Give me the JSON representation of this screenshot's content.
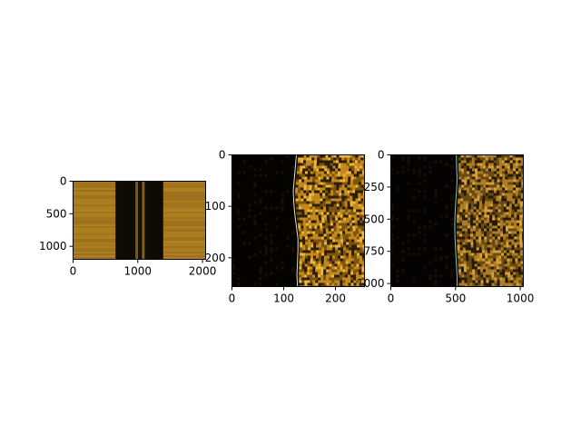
{
  "figure": {
    "background": "#ffffff"
  },
  "chart_data": [
    {
      "type": "heatmap",
      "title": "",
      "xlabel": "",
      "ylabel": "",
      "xlim": [
        0,
        2048
      ],
      "ylim": [
        1200,
        0
      ],
      "xticks": [
        0,
        1000,
        2000
      ],
      "yticks": [
        0,
        500,
        1000
      ],
      "image": {
        "description": "side-scan sonar mosaic, amber seafloor returns on both sides with a dark water-column band in the middle",
        "palette": [
          "#050300",
          "#3a2608",
          "#8a5e14",
          "#c8901e",
          "#e8b440"
        ],
        "bands": [
          {
            "from": 0,
            "to": 0.32,
            "color": "#a87a1e"
          },
          {
            "from": 0.32,
            "to": 0.47,
            "color": "#0e0b04"
          },
          {
            "from": 0.47,
            "to": 0.49,
            "color": "#7a5a1c"
          },
          {
            "from": 0.49,
            "to": 0.52,
            "color": "#141006"
          },
          {
            "from": 0.52,
            "to": 0.54,
            "color": "#806024"
          },
          {
            "from": 0.54,
            "to": 0.57,
            "color": "#120e05"
          },
          {
            "from": 0.57,
            "to": 0.68,
            "color": "#0e0b04"
          },
          {
            "from": 0.68,
            "to": 1.0,
            "color": "#a87a1e"
          }
        ]
      }
    },
    {
      "type": "heatmap",
      "title": "",
      "xlabel": "",
      "ylabel": "",
      "xlim": [
        0,
        256
      ],
      "ylim": [
        256,
        0
      ],
      "xticks": [
        0,
        100,
        200
      ],
      "yticks": [
        0,
        100,
        200
      ],
      "image": {
        "description": "close-up of sonar swath: dark water column on the left, a thin bright bottom line, speckled amber seafloor to the right",
        "palette": [
          "#050300",
          "#2a1c06",
          "#7a5410",
          "#c48a1c",
          "#f0b838"
        ],
        "boundary_x": [
          128,
          126,
          124,
          122,
          123,
          125,
          128,
          131,
          131,
          130,
          129,
          130
        ],
        "line_color": "#e8e0c0"
      }
    },
    {
      "type": "heatmap",
      "title": "",
      "xlabel": "",
      "ylabel": "",
      "xlim": [
        0,
        1024
      ],
      "ylim": [
        1024,
        0
      ],
      "xticks": [
        0,
        500,
        1000
      ],
      "yticks": [
        0,
        250,
        500,
        750,
        1000
      ],
      "image": {
        "description": "wider sonar swath: dark water column on the left, faint pale bottom line, speckled amber seafloor to the right",
        "palette": [
          "#040302",
          "#241a08",
          "#6a4a14",
          "#b07e22",
          "#d8a23a"
        ],
        "boundary_x": [
          520,
          522,
          526,
          522,
          515,
          510,
          508,
          510,
          515,
          520,
          525,
          527
        ],
        "line_color": "#8fc8b0"
      }
    }
  ]
}
